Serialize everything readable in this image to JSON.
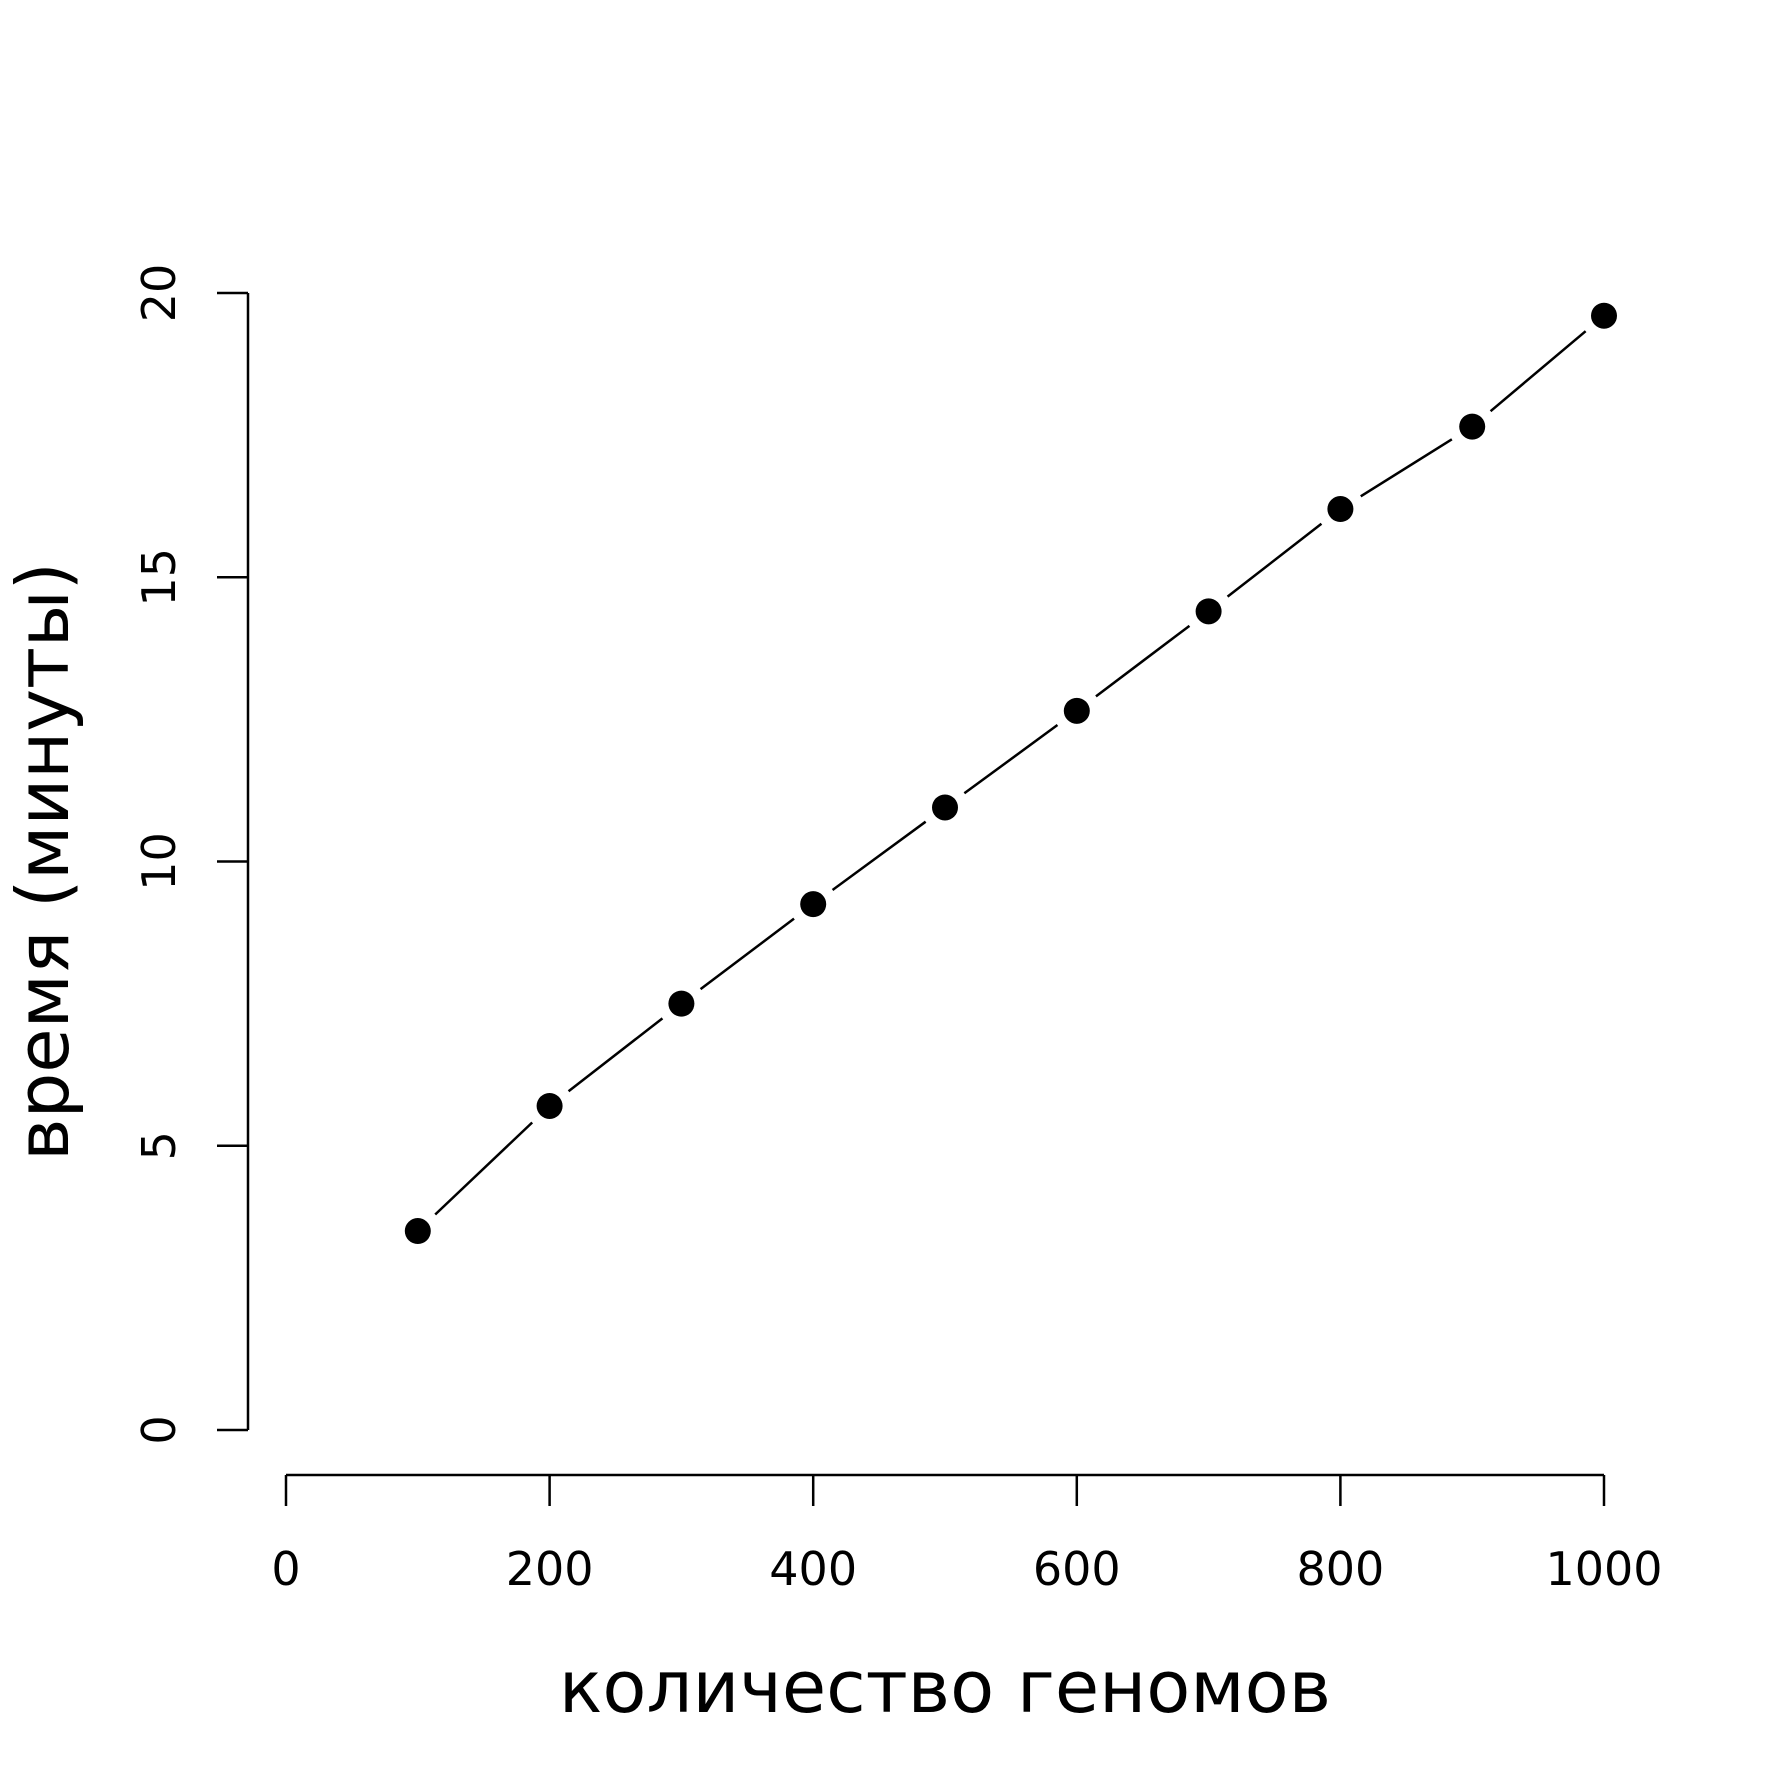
{
  "chart_data": {
    "type": "line",
    "title": "",
    "xlabel": "количество геномов",
    "ylabel": "время (минуты)",
    "xlim": [
      0,
      1000
    ],
    "ylim": [
      0,
      20
    ],
    "xticks": [
      0,
      200,
      400,
      600,
      800,
      1000
    ],
    "yticks": [
      0,
      5,
      10,
      15,
      20
    ],
    "xtick_labels": [
      "0",
      "200",
      "400",
      "600",
      "800",
      "1000"
    ],
    "ytick_labels": [
      "0",
      "5",
      "10",
      "15",
      "20"
    ],
    "grid": false,
    "legend": "none",
    "series": [
      {
        "x": [
          100,
          200,
          300,
          400,
          500,
          600,
          700,
          800,
          900,
          1000
        ],
        "y": [
          3.5,
          5.7,
          7.5,
          9.25,
          10.95,
          12.65,
          14.4,
          16.2,
          17.65,
          19.6
        ],
        "marker": "filled-circle",
        "line": "gapped"
      }
    ]
  }
}
